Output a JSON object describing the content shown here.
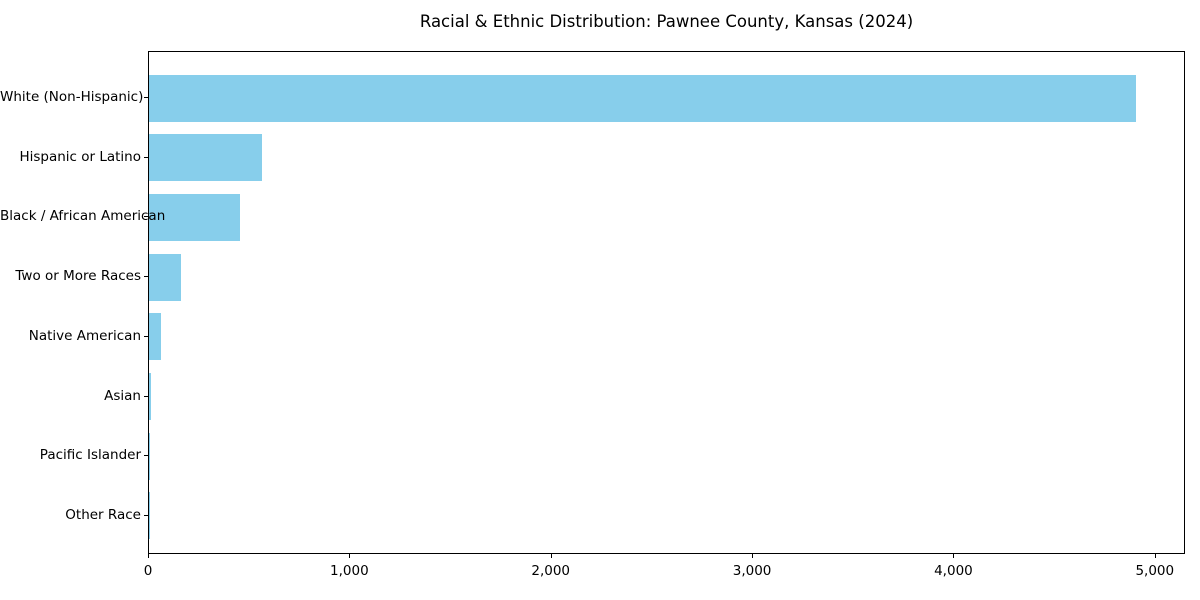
{
  "figure": {
    "background": "#ffffff"
  },
  "chart_data": {
    "type": "bar",
    "orientation": "horizontal",
    "title": "Racial & Ethnic Distribution: Pawnee County, Kansas (2024)",
    "xlabel": "",
    "ylabel": "",
    "categories": [
      "White (Non-Hispanic)",
      "Hispanic or Latino",
      "Black / African American",
      "Two or More Races",
      "Native American",
      "Asian",
      "Pacific Islander",
      "Other Race"
    ],
    "values": [
      4900,
      560,
      450,
      160,
      60,
      10,
      5,
      5
    ],
    "bar_color": "#87CEEB",
    "axis_color": "#000000",
    "text_color": "#000000",
    "x_ticks": [
      0,
      1000,
      2000,
      3000,
      4000,
      5000
    ],
    "x_tick_labels": [
      "0",
      "1,000",
      "2,000",
      "3,000",
      "4,000",
      "5,000"
    ],
    "xlim": [
      0,
      5150
    ],
    "grid": false,
    "legend": "none"
  }
}
